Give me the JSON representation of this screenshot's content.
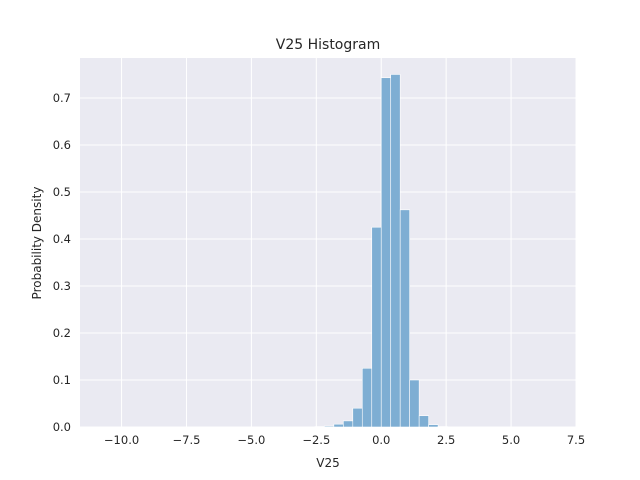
{
  "chart_data": {
    "type": "bar",
    "title": "V25 Histogram",
    "xlabel": "V25",
    "ylabel": "Probability Density",
    "xlim": [
      -11.6,
      7.5
    ],
    "ylim": [
      0,
      0.785
    ],
    "grid": true,
    "bar_color": "#7eaed3",
    "background_color": "#eaeaf2",
    "grid_color": "#ffffff",
    "xticks": [
      -10.0,
      -7.5,
      -5.0,
      -2.5,
      0.0,
      2.5,
      5.0,
      7.5
    ],
    "xtick_labels": [
      "−10.0",
      "−7.5",
      "−5.0",
      "−2.5",
      "0.0",
      "2.5",
      "5.0",
      "7.5"
    ],
    "yticks": [
      0.0,
      0.1,
      0.2,
      0.3,
      0.4,
      0.5,
      0.6,
      0.7
    ],
    "ytick_labels": [
      "0.0",
      "0.1",
      "0.2",
      "0.3",
      "0.4",
      "0.5",
      "0.6",
      "0.7"
    ],
    "bin_width": 0.365,
    "bins": [
      {
        "x0": -2.555,
        "value": 0.001
      },
      {
        "x0": -2.19,
        "value": 0.002
      },
      {
        "x0": -1.825,
        "value": 0.006
      },
      {
        "x0": -1.46,
        "value": 0.013
      },
      {
        "x0": -1.095,
        "value": 0.04
      },
      {
        "x0": -0.73,
        "value": 0.125
      },
      {
        "x0": -0.365,
        "value": 0.425
      },
      {
        "x0": 0.0,
        "value": 0.743
      },
      {
        "x0": 0.365,
        "value": 0.75
      },
      {
        "x0": 0.73,
        "value": 0.462
      },
      {
        "x0": 1.095,
        "value": 0.1
      },
      {
        "x0": 1.46,
        "value": 0.024
      },
      {
        "x0": 1.825,
        "value": 0.005
      },
      {
        "x0": 2.19,
        "value": 0.001
      }
    ]
  }
}
